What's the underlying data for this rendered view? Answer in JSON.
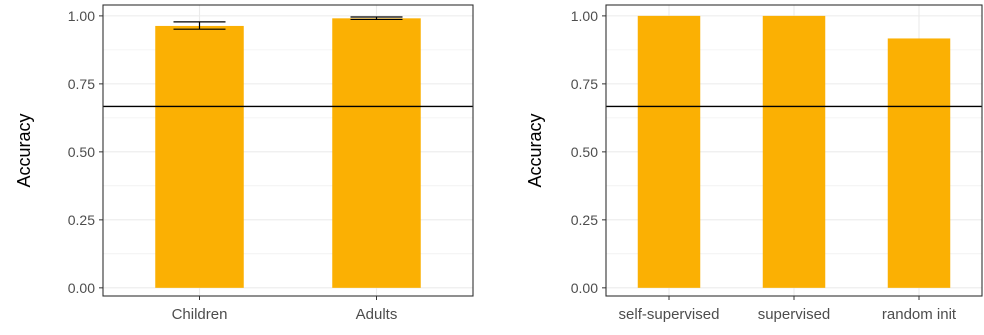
{
  "colors": {
    "bar": "#FBB003",
    "grid": "#ebebeb",
    "axis": "#333333",
    "reference_line": "#000000"
  },
  "chart_data": [
    {
      "type": "bar",
      "categories": [
        "Children",
        "Adults"
      ],
      "values": [
        0.963,
        0.991
      ],
      "error_bars": [
        [
          0.951,
          0.978
        ],
        [
          0.987,
          0.996
        ]
      ],
      "reference_line": 0.667,
      "ylabel": "Accuracy",
      "xlabel": "",
      "ylim": [
        -0.03,
        1.04
      ],
      "yticks": [
        0.0,
        0.25,
        0.5,
        0.75,
        1.0
      ],
      "ytick_labels": [
        "0.00",
        "0.25",
        "0.50",
        "0.75",
        "1.00"
      ],
      "grid": true
    },
    {
      "type": "bar",
      "categories": [
        "self-supervised",
        "supervised",
        "random init"
      ],
      "values": [
        1.0,
        1.0,
        0.917
      ],
      "reference_line": 0.667,
      "ylabel": "Accuracy",
      "xlabel": "",
      "ylim": [
        -0.03,
        1.04
      ],
      "yticks": [
        0.0,
        0.25,
        0.5,
        0.75,
        1.0
      ],
      "ytick_labels": [
        "0.00",
        "0.25",
        "0.50",
        "0.75",
        "1.00"
      ],
      "grid": true
    }
  ]
}
